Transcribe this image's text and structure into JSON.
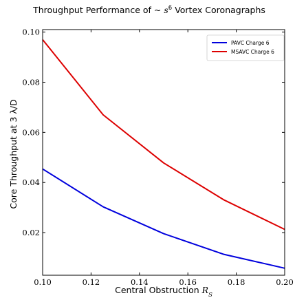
{
  "chart_data": {
    "type": "line",
    "title": {
      "before": "Throughput Performance of ",
      "tilde": "∼",
      "var": "s",
      "exp": "6",
      "after": " Vortex Coronagraphs"
    },
    "xlabel": {
      "text": "Central Obstruction ",
      "var": "R",
      "sub": "S"
    },
    "ylabel": "Core Throughput at 3 λ/D",
    "xlim": [
      0.1,
      0.2
    ],
    "ylim": [
      0.003,
      0.101
    ],
    "xticks": [
      "0.10",
      "0.12",
      "0.14",
      "0.16",
      "0.18",
      "0.20"
    ],
    "yticks": [
      "0.02",
      "0.04",
      "0.06",
      "0.08",
      "0.10"
    ],
    "grid": false,
    "legend_position": "top-right",
    "x": [
      0.1,
      0.125,
      0.15,
      0.175,
      0.2
    ],
    "series": [
      {
        "name": "PAVC Charge 6",
        "color": "#0000dd",
        "values": [
          0.0454,
          0.0303,
          0.0196,
          0.0113,
          0.0058
        ]
      },
      {
        "name": "MSAVC Charge 6",
        "color": "#dd0000",
        "values": [
          0.097,
          0.067,
          0.0478,
          0.033,
          0.0213
        ]
      }
    ]
  }
}
